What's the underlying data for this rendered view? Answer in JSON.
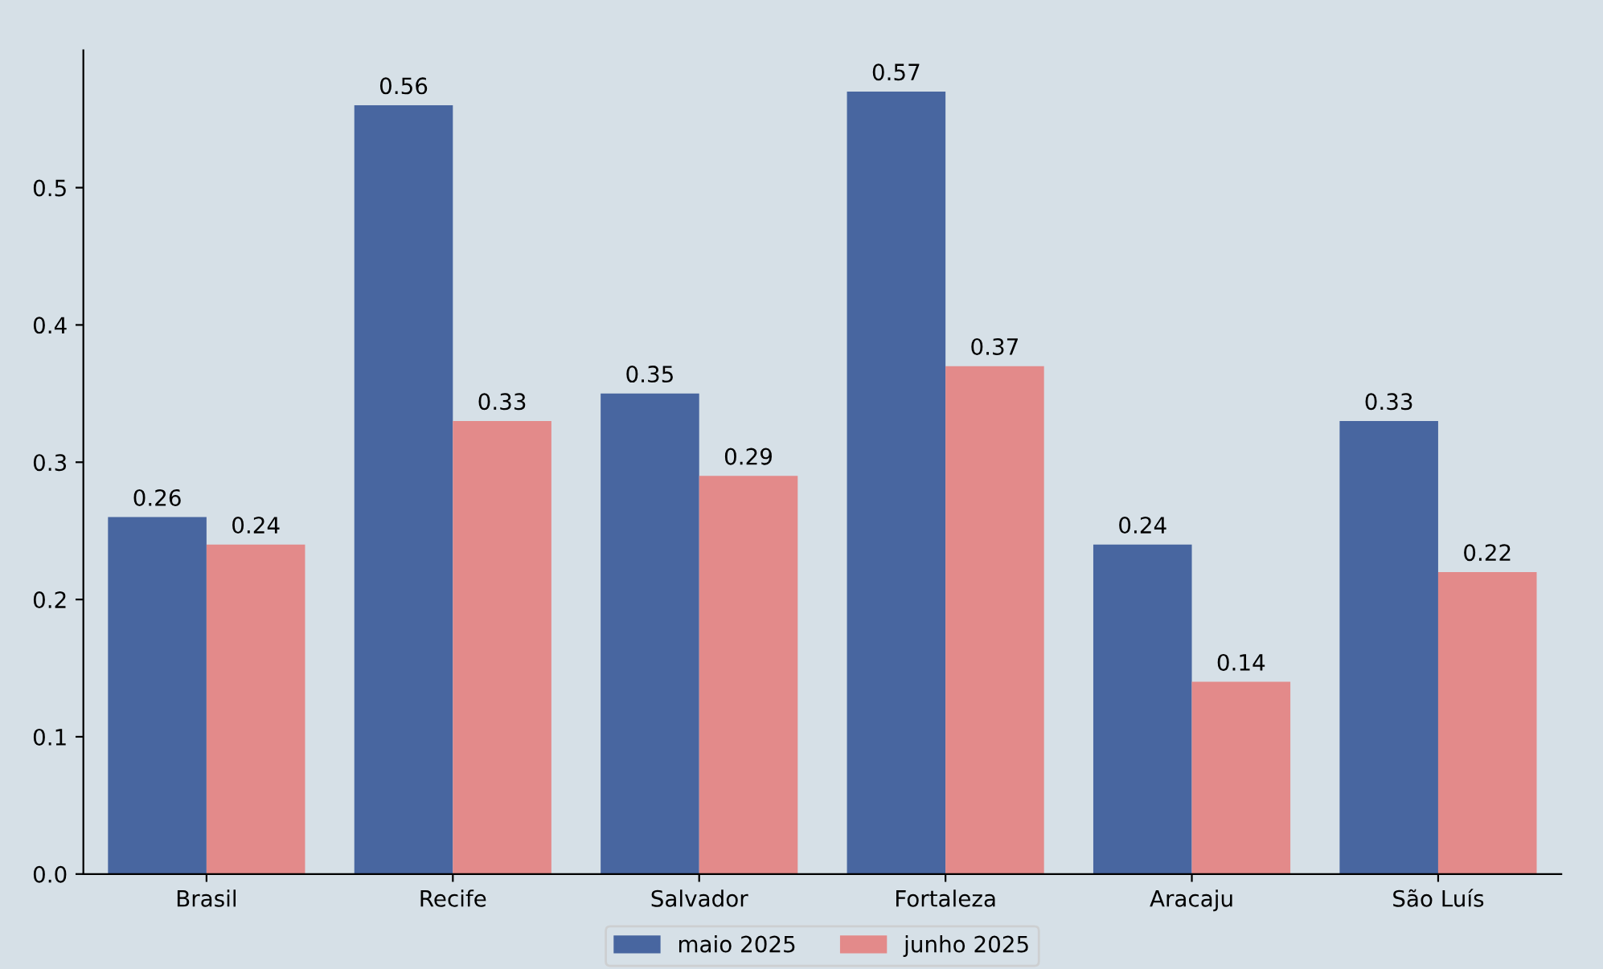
{
  "chart_data": {
    "type": "bar",
    "categories": [
      "Brasil",
      "Recife",
      "Salvador",
      "Fortaleza",
      "Aracaju",
      "São Luís"
    ],
    "series": [
      {
        "name": "maio 2025",
        "color": "#4866a0",
        "values": [
          0.26,
          0.56,
          0.35,
          0.57,
          0.24,
          0.33
        ]
      },
      {
        "name": "junho 2025",
        "color": "#e38a8a",
        "values": [
          0.24,
          0.33,
          0.29,
          0.37,
          0.14,
          0.22
        ]
      }
    ],
    "ylim": [
      0,
      0.6
    ],
    "yticks": [
      {
        "value": 0,
        "label": "0.0"
      },
      0.1,
      0.2,
      0.3,
      0.4,
      0.5
    ],
    "data_labels": true,
    "grid": false,
    "legend": "bottom"
  }
}
